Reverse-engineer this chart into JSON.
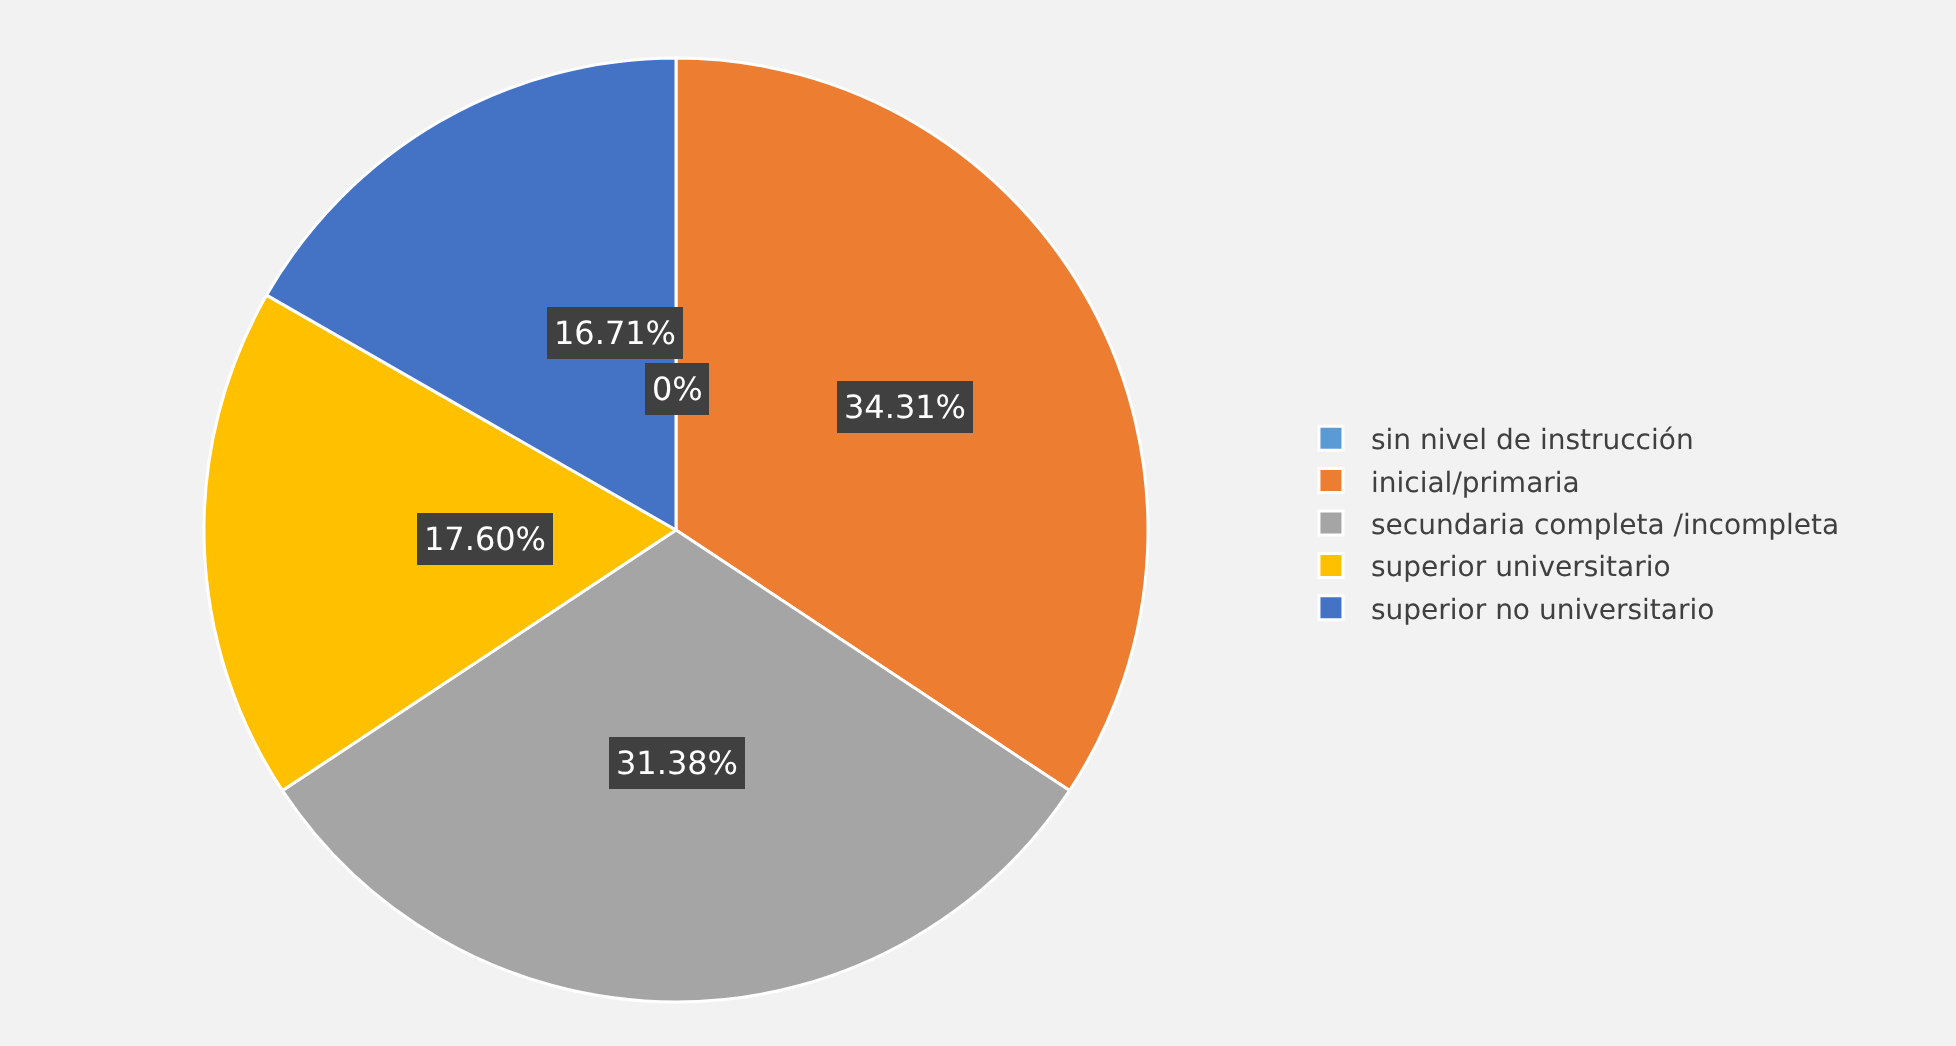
{
  "chart_data": {
    "type": "pie",
    "categories": [
      "sin nivel de instrucción",
      "inicial/primaria",
      "secundaria completa /incompleta",
      "superior universitario",
      "superior no universitario"
    ],
    "values": [
      0,
      34.31,
      31.38,
      17.6,
      16.71
    ],
    "colors": [
      "#5b9bd5",
      "#ed7d31",
      "#a5a5a5",
      "#ffc000",
      "#4472c4"
    ],
    "value_labels": [
      "0%",
      "34.31%",
      "31.38%",
      "17.60%",
      "16.71%"
    ],
    "legend": "right"
  }
}
